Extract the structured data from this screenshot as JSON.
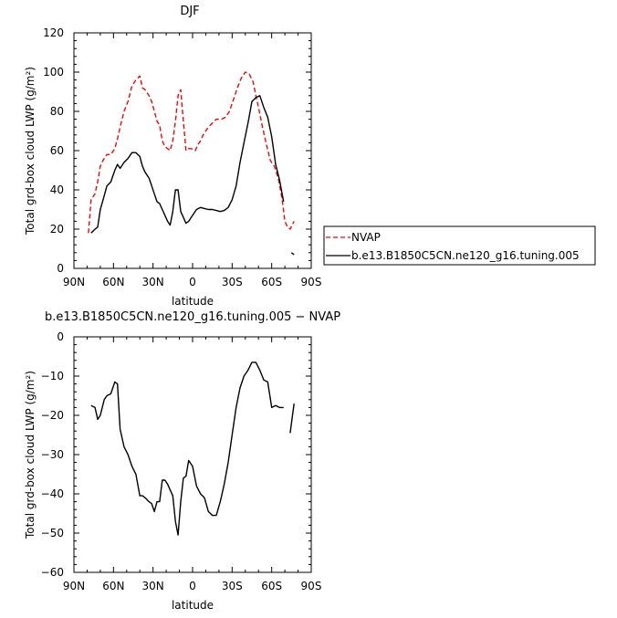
{
  "chart_data": [
    {
      "type": "line",
      "title": "DJF",
      "xlabel": "latitude",
      "ylabel": "Total grd-box cloud LWP (g/m²)",
      "xlim": [
        90,
        -90
      ],
      "ylim": [
        0,
        120
      ],
      "x_ticks": [
        90,
        60,
        30,
        0,
        -30,
        -60,
        -90
      ],
      "x_tick_labels": [
        "90N",
        "60N",
        "30N",
        "0",
        "30S",
        "60S",
        "90S"
      ],
      "y_ticks": [
        0,
        20,
        40,
        60,
        80,
        100,
        120
      ],
      "y_tick_labels": [
        "0",
        "20",
        "40",
        "60",
        "80",
        "100",
        "120"
      ],
      "legend_position": "right",
      "series": [
        {
          "name": "NVAP",
          "color": "#ff0000",
          "dash": "dashed",
          "segments": [
            {
              "x": [
                79,
                77,
                74,
                72,
                70,
                68,
                65,
                62,
                59,
                57,
                55,
                52,
                49,
                46,
                43,
                40,
                38,
                36,
                33,
                31,
                29,
                27,
                25,
                23,
                21,
                19,
                17,
                15,
                13,
                11,
                9,
                7,
                5,
                3,
                1,
                -2,
                -4,
                -6,
                -8,
                -10,
                -12,
                -15,
                -18,
                -20,
                -22,
                -25,
                -28,
                -31,
                -34,
                -37,
                -40,
                -43,
                -46,
                -48,
                -50,
                -53,
                -56,
                -59,
                -62,
                -65,
                -68,
                -70,
                -72,
                -74,
                -77
              ],
              "y": [
                18,
                35,
                38,
                44,
                52,
                55,
                58,
                58,
                61,
                66,
                72,
                80,
                85,
                93,
                96,
                98,
                92,
                91,
                88,
                85,
                80,
                75,
                73,
                65,
                62,
                61,
                60,
                65,
                75,
                88,
                91,
                75,
                60,
                61,
                61,
                60,
                63,
                65,
                68,
                70,
                72,
                74,
                76,
                76,
                76,
                77,
                80,
                86,
                92,
                97,
                100,
                99,
                95,
                88,
                82,
                72,
                63,
                55,
                52,
                46,
                35,
                24,
                21,
                20,
                24
              ]
            }
          ]
        },
        {
          "name": "b.e13.B1850C5CN.ne120_g16.tuning.005",
          "color": "#000000",
          "dash": "solid",
          "segments": [
            {
              "x": [
                77,
                74,
                72,
                70,
                67,
                65,
                62,
                59,
                57,
                55,
                52,
                49,
                46,
                43,
                40,
                38,
                36,
                33,
                31,
                29,
                27,
                25,
                23,
                21,
                19,
                17,
                15,
                13,
                11,
                9,
                7,
                5,
                3,
                0,
                -3,
                -6,
                -9,
                -12,
                -15,
                -18,
                -21,
                -24,
                -27,
                -30,
                -33,
                -36,
                -39,
                -42,
                -45,
                -48,
                -51,
                -54,
                -57,
                -60,
                -63,
                -66,
                -69
              ],
              "y": [
                18,
                20,
                21,
                30,
                37,
                42,
                44,
                50,
                53,
                51,
                54,
                56,
                59,
                59,
                57,
                52,
                49,
                46,
                42,
                38,
                34,
                33,
                30,
                27,
                24,
                22,
                29,
                40,
                40,
                29,
                26,
                23,
                24,
                27,
                30,
                31,
                30.5,
                30,
                30,
                29.5,
                29,
                29.5,
                31,
                35,
                42,
                54,
                64,
                74,
                85,
                87,
                88,
                82,
                77,
                67,
                53,
                45,
                34
              ]
            },
            {
              "x": [
                -75,
                -77
              ],
              "y": [
                8,
                7
              ]
            }
          ]
        }
      ]
    },
    {
      "type": "line",
      "title": "b.e13.B1850C5CN.ne120_g16.tuning.005 − NVAP",
      "xlabel": "latitude",
      "ylabel": "Total grd-box cloud LWP (g/m²)",
      "xlim": [
        90,
        -90
      ],
      "ylim": [
        -60,
        0
      ],
      "x_ticks": [
        90,
        60,
        30,
        0,
        -30,
        -60,
        -90
      ],
      "x_tick_labels": [
        "90N",
        "60N",
        "30N",
        "0",
        "30S",
        "60S",
        "90S"
      ],
      "y_ticks": [
        0,
        -10,
        -20,
        -30,
        -40,
        -50,
        -60
      ],
      "y_tick_labels": [
        "0",
        "−10",
        "−20",
        "−30",
        "−40",
        "−50",
        "−60"
      ],
      "series": [
        {
          "name": "",
          "color": "#000000",
          "dash": "solid",
          "segments": [
            {
              "x": [
                77,
                74,
                72,
                70,
                67,
                65,
                62,
                59,
                57,
                55,
                52,
                49,
                46,
                43,
                40,
                38,
                36,
                33,
                31,
                29,
                27,
                25,
                23,
                21,
                19,
                17,
                15,
                13,
                11,
                9,
                7,
                5,
                3,
                0,
                -3,
                -6,
                -9,
                -12,
                -15,
                -18,
                -21,
                -24,
                -27,
                -30,
                -33,
                -36,
                -39,
                -42,
                -45,
                -48,
                -51,
                -54,
                -57,
                -60,
                -63,
                -66,
                -69
              ],
              "y": [
                -17.5,
                -18,
                -21,
                -20,
                -16,
                -15,
                -14.5,
                -11.5,
                -12,
                -23.5,
                -28,
                -30,
                -33,
                -35,
                -40.5,
                -40.5,
                -41,
                -42,
                -42.5,
                -44.5,
                -42,
                -42,
                -36.5,
                -36.5,
                -37.5,
                -39,
                -40.5,
                -47,
                -50.5,
                -42,
                -36,
                -35.5,
                -31.5,
                -33,
                -38,
                -40,
                -41,
                -44.5,
                -45.5,
                -45.5,
                -42,
                -37.5,
                -32,
                -25,
                -18,
                -13,
                -10,
                -8.5,
                -6.5,
                -6.5,
                -8.5,
                -11,
                -11.5,
                -18,
                -17.5,
                -18,
                -18
              ]
            },
            {
              "x": [
                -74,
                -77
              ],
              "y": [
                -24.5,
                -17
              ]
            }
          ]
        }
      ]
    }
  ]
}
